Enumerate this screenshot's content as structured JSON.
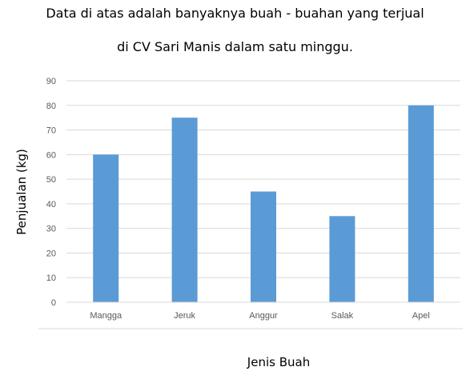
{
  "caption": {
    "line1": "Data di atas adalah banyaknya buah - buahan yang terjual",
    "line2": "di CV Sari Manis dalam satu minggu."
  },
  "chart_data": {
    "type": "bar",
    "categories": [
      "Mangga",
      "Jeruk",
      "Anggur",
      "Salak",
      "Apel"
    ],
    "values": [
      60,
      75,
      45,
      35,
      80
    ],
    "xlabel": "Jenis Buah",
    "ylabel": "Penjualan (kg)",
    "ylim": [
      0,
      90
    ],
    "yticks": [
      "0",
      "10",
      "20",
      "30",
      "40",
      "50",
      "60",
      "70",
      "80",
      "90"
    ],
    "grid": true,
    "legend": "none",
    "bar_color": "#5b9bd5",
    "grid_color": "#d9d9d9"
  }
}
